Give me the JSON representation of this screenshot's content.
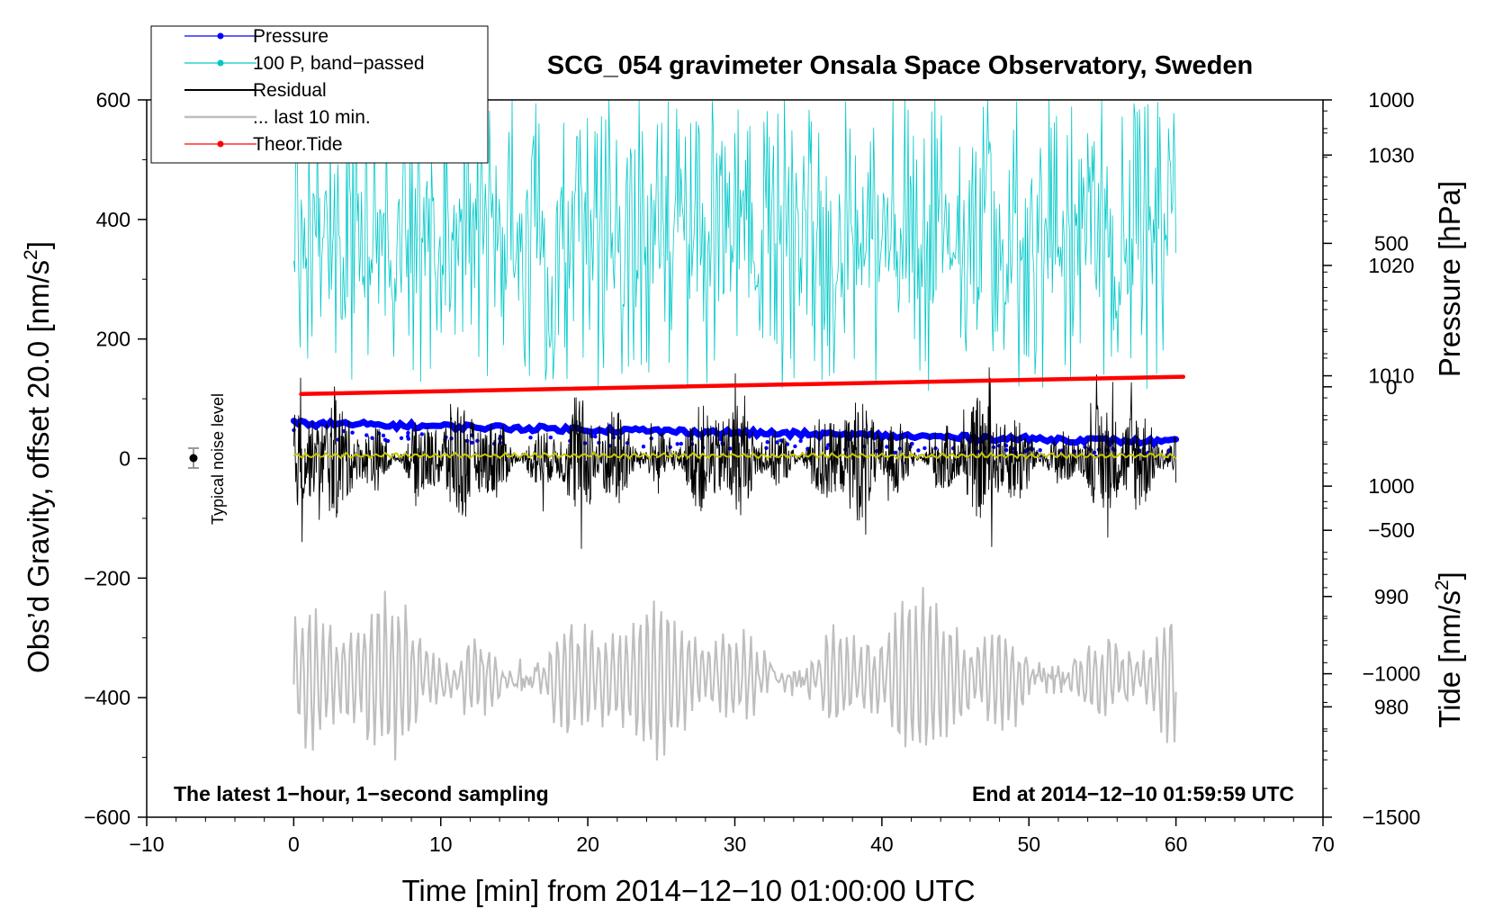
{
  "chart_data": {
    "type": "line",
    "title": "SCG_054 gravimeter Onsala Space Observatory, Sweden",
    "xlabel": "Time [min] from 2014−12−10 01:00:00 UTC",
    "ylabel": "Obs’d Gravity, offset 20.0 [nm/s²]",
    "ylabel_main": "Obs’d Gravity, offset 20.0 [nm/s",
    "ylabel_sup": "2",
    "ylabel_end": "]",
    "xlim": [
      -10,
      70
    ],
    "ylim": [
      -600,
      600
    ],
    "x_ticks": [
      -10,
      0,
      10,
      20,
      30,
      40,
      50,
      60,
      70
    ],
    "x_tick_labels": [
      "−10",
      "0",
      "10",
      "20",
      "30",
      "40",
      "50",
      "60",
      "70"
    ],
    "y_ticks": [
      -600,
      -400,
      -200,
      0,
      200,
      400,
      600
    ],
    "y_tick_labels": [
      "−600",
      "−400",
      "−200",
      "0",
      "200",
      "400",
      "600"
    ],
    "pressure_axis": {
      "label": "Pressure [hPa]",
      "ticks": [
        980,
        990,
        1000,
        1010,
        1020,
        1030
      ],
      "tick_labels": [
        "980",
        "990",
        "1000",
        "1010",
        "1020",
        "1030"
      ],
      "range": [
        970,
        1035
      ]
    },
    "tide_axis": {
      "label_main": "Tide [nm/s",
      "label_sup": "2",
      "label_end": "]",
      "ticks": [
        -1500,
        -1000,
        -500,
        0,
        500,
        1000
      ],
      "tick_labels": [
        "−1500",
        "−1000",
        "−500",
        "0",
        "500",
        "1000"
      ],
      "range": [
        -1500,
        1000
      ]
    },
    "legend": {
      "placement": "top-left",
      "entries": [
        {
          "name": "Pressure",
          "color": "#0000ff",
          "marker": true
        },
        {
          "name": "100 P, band−passed",
          "color": "#00c8c8",
          "marker": true
        },
        {
          "name": "Residual",
          "color": "#000000",
          "marker": false
        },
        {
          "name": "... last 10 min.",
          "color": "#bebebe",
          "marker": false
        },
        {
          "name": "Theor.Tide",
          "color": "#ff0000",
          "marker": true
        }
      ]
    },
    "series": [
      {
        "name": "Pressure",
        "axis": "pressure",
        "color": "#0000ff",
        "x": [
          0,
          60
        ],
        "values": [
          1005.7,
          1004.0
        ]
      },
      {
        "name": "100 P, band−passed",
        "axis": "gravity",
        "color": "#00c8c8",
        "x": [
          0,
          60
        ],
        "typical_range": [
          150,
          560
        ]
      },
      {
        "name": "Residual",
        "axis": "gravity",
        "color": "#000000",
        "x": [
          0,
          60
        ],
        "typical_range": [
          -120,
          130
        ]
      },
      {
        "name": "Residual mean",
        "axis": "gravity",
        "color": "#c8c800",
        "x": [
          0,
          60
        ],
        "values": [
          5,
          5
        ]
      },
      {
        "name": "... last 10 min.",
        "axis": "gravity",
        "color": "#bebebe",
        "x": [
          0,
          60
        ],
        "typical_range": [
          -510,
          -215
        ]
      },
      {
        "name": "Theor.Tide",
        "axis": "tide",
        "color": "#ff0000",
        "x": [
          0.5,
          60.5
        ],
        "values": [
          -25,
          35
        ]
      }
    ],
    "noise_marker": {
      "x": -7,
      "y": 0,
      "error": 18,
      "label": "Typical noise level"
    },
    "annotations": {
      "left": "The latest 1−hour, 1−second sampling",
      "right": "End at 2014−12−10 01:59:59 UTC"
    }
  }
}
